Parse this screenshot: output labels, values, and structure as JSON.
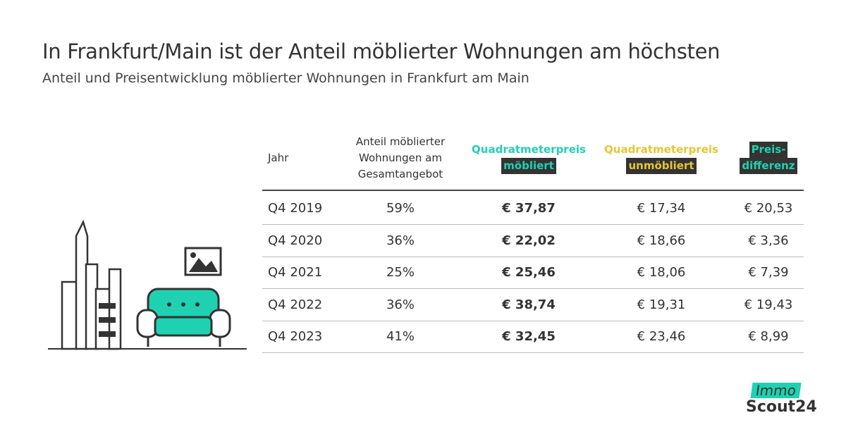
{
  "header": {
    "title": "In Frankfurt/Main ist der Anteil möblierter Wohnungen am höchsten",
    "subtitle": "Anteil und Preisentwicklung möblierter Wohnungen in Frankfurt am Main"
  },
  "table": {
    "columns": [
      [
        "Jahr"
      ],
      [
        "Anteil möblierter",
        "Wohnungen am",
        "Gesamtangebot"
      ],
      [
        "Quadratmeterpreis",
        "möbliert"
      ],
      [
        "Quadratmeterpreis",
        "unmöbliert"
      ],
      [
        "Preis-",
        "differenz"
      ]
    ],
    "rows": [
      [
        "Q4 2019",
        "59%",
        "€ 37,87",
        "€ 17,34",
        "€ 20,53"
      ],
      [
        "Q4 2020",
        "36%",
        "€ 22,02",
        "€ 18,66",
        "€ 3,36"
      ],
      [
        "Q4 2021",
        "25%",
        "€ 25,46",
        "€ 18,06",
        "€ 7,39"
      ],
      [
        "Q4 2022",
        "36%",
        "€ 38,74",
        "€ 19,31",
        "€ 19,43"
      ],
      [
        "Q4 2023",
        "41%",
        "€ 32,45",
        "€ 23,46",
        "€ 8,99"
      ]
    ]
  },
  "logo": {
    "line1": "Immo",
    "line2": "Scout24"
  }
}
